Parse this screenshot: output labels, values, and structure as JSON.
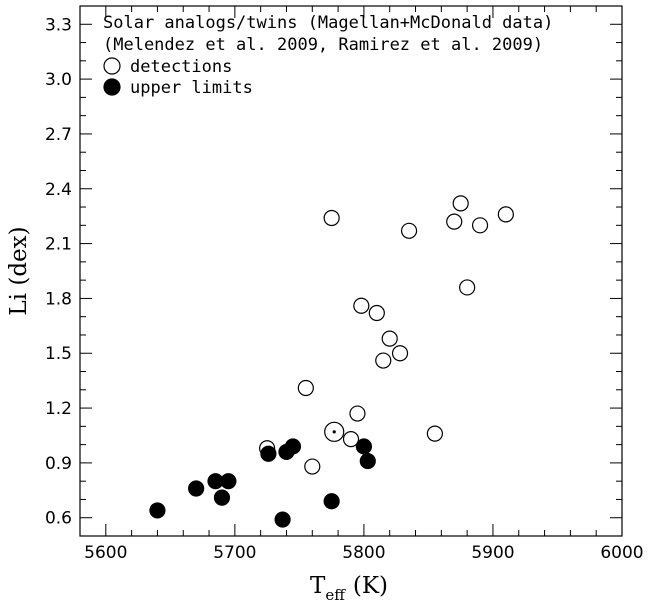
{
  "chart_data": {
    "type": "scatter",
    "xlabel": "T",
    "xlabel_sub": "eff",
    "xlabel_unit": "(K)",
    "ylabel": "Li (dex)",
    "xlim": [
      5580,
      6000
    ],
    "ylim": [
      0.5,
      3.4
    ],
    "xticks": [
      5600,
      5700,
      5800,
      5900,
      6000
    ],
    "yticks": [
      0.6,
      0.9,
      1.2,
      1.5,
      1.8,
      2.1,
      2.4,
      2.7,
      3.0,
      3.3
    ],
    "xtick_labels": [
      "5600",
      "5700",
      "5800",
      "5900",
      "6000"
    ],
    "ytick_labels": [
      "0.6",
      "0.9",
      "1.2",
      "1.5",
      "1.8",
      "2.1",
      "2.4",
      "2.7",
      "3.0",
      "3.3"
    ],
    "legend": {
      "position": "top-left",
      "title_lines": [
        "Solar analogs/twins (Magellan+McDonald data)",
        "(Melendez et al. 2009, Ramirez et al. 2009)"
      ]
    },
    "sun": {
      "x": 5777,
      "y": 1.07
    },
    "series": [
      {
        "name": "detections",
        "marker": "open-circle",
        "points": [
          {
            "x": 5725,
            "y": 0.98
          },
          {
            "x": 5755,
            "y": 1.31
          },
          {
            "x": 5760,
            "y": 0.88
          },
          {
            "x": 5775,
            "y": 2.24
          },
          {
            "x": 5790,
            "y": 1.03
          },
          {
            "x": 5795,
            "y": 1.17
          },
          {
            "x": 5798,
            "y": 1.76
          },
          {
            "x": 5810,
            "y": 1.72
          },
          {
            "x": 5815,
            "y": 1.46
          },
          {
            "x": 5820,
            "y": 1.58
          },
          {
            "x": 5828,
            "y": 1.5
          },
          {
            "x": 5835,
            "y": 2.17
          },
          {
            "x": 5855,
            "y": 1.06
          },
          {
            "x": 5870,
            "y": 2.22
          },
          {
            "x": 5875,
            "y": 2.32
          },
          {
            "x": 5880,
            "y": 1.86
          },
          {
            "x": 5890,
            "y": 2.2
          },
          {
            "x": 5910,
            "y": 2.26
          }
        ]
      },
      {
        "name": "upper limits",
        "marker": "filled-circle",
        "points": [
          {
            "x": 5640,
            "y": 0.64
          },
          {
            "x": 5670,
            "y": 0.76
          },
          {
            "x": 5685,
            "y": 0.8
          },
          {
            "x": 5690,
            "y": 0.71
          },
          {
            "x": 5695,
            "y": 0.8
          },
          {
            "x": 5726,
            "y": 0.95
          },
          {
            "x": 5737,
            "y": 0.59
          },
          {
            "x": 5740,
            "y": 0.96
          },
          {
            "x": 5745,
            "y": 0.99
          },
          {
            "x": 5775,
            "y": 0.69
          },
          {
            "x": 5800,
            "y": 0.99
          },
          {
            "x": 5803,
            "y": 0.91
          }
        ]
      }
    ]
  }
}
